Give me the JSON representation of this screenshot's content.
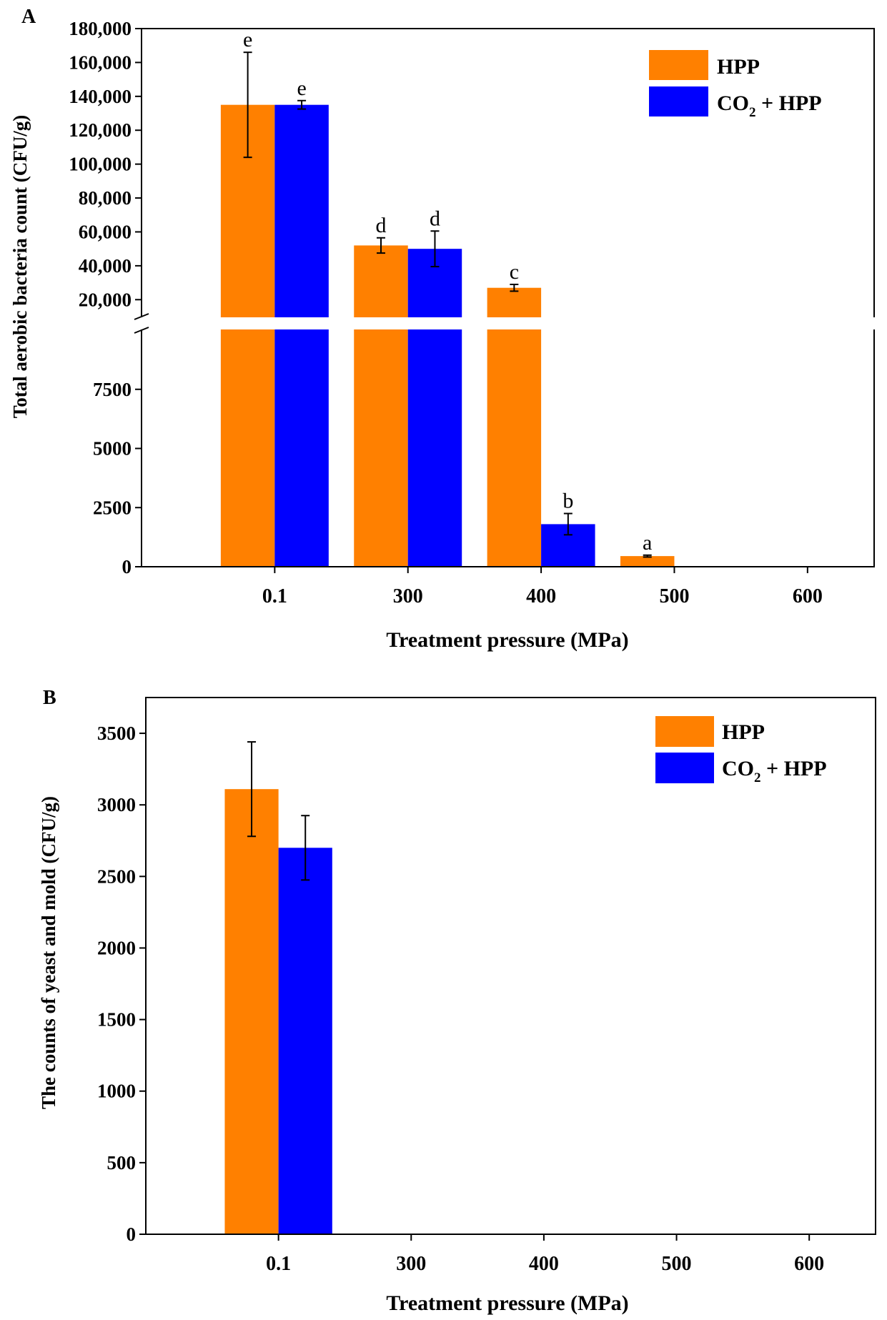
{
  "colors": {
    "hpp": "#FF8000",
    "co2": "#0000FF",
    "axis": "#000000"
  },
  "chart_data": [
    {
      "panel": "A",
      "type": "bar",
      "ylabel": "Total aerobic bacteria count (CFU/g)",
      "xlabel": "Treatment pressure (MPa)",
      "categories": [
        "0.1",
        "300",
        "400",
        "500",
        "600"
      ],
      "legend": [
        {
          "series": "hpp",
          "label": "HPP"
        },
        {
          "series": "co2",
          "label_pre": "CO",
          "label_sub": "2",
          "label_post": " + HPP"
        }
      ],
      "series": [
        {
          "key": "hpp",
          "name": "HPP",
          "values": [
            135000,
            52000,
            27000,
            450,
            0
          ],
          "errors": [
            31000,
            4500,
            2000,
            40,
            0
          ],
          "letters": [
            "e",
            "d",
            "c",
            "a",
            ""
          ]
        },
        {
          "key": "co2",
          "name": "CO2 + HPP",
          "values": [
            135000,
            50000,
            1800,
            0,
            0
          ],
          "errors": [
            2500,
            10500,
            450,
            0,
            0
          ],
          "letters": [
            "e",
            "d",
            "b",
            "",
            ""
          ]
        }
      ],
      "broken_axis": {
        "lower": {
          "range": [
            0,
            10000
          ],
          "ticks": [
            0,
            2500,
            5000,
            7500
          ],
          "tick_labels": [
            "0",
            "2500",
            "5000",
            "7500"
          ]
        },
        "upper": {
          "range": [
            10000,
            180000
          ],
          "ticks": [
            20000,
            40000,
            60000,
            80000,
            100000,
            120000,
            140000,
            160000,
            180000
          ],
          "tick_labels": [
            "20,000",
            "40,000",
            "60,000",
            "80,000",
            "100,000",
            "120,000",
            "140,000",
            "160,000",
            "180,000"
          ]
        }
      }
    },
    {
      "panel": "B",
      "type": "bar",
      "ylabel": "The counts of yeast and mold (CFU/g)",
      "xlabel": "Treatment pressure (MPa)",
      "categories": [
        "0.1",
        "300",
        "400",
        "500",
        "600"
      ],
      "legend": [
        {
          "series": "hpp",
          "label": "HPP"
        },
        {
          "series": "co2",
          "label_pre": "CO",
          "label_sub": "2",
          "label_post": " + HPP"
        }
      ],
      "series": [
        {
          "key": "hpp",
          "name": "HPP",
          "values": [
            3110,
            0,
            0,
            0,
            0
          ],
          "errors": [
            330,
            0,
            0,
            0,
            0
          ]
        },
        {
          "key": "co2",
          "name": "CO2 + HPP",
          "values": [
            2700,
            0,
            0,
            0,
            0
          ],
          "errors": [
            225,
            0,
            0,
            0,
            0
          ]
        }
      ],
      "ylim": [
        0,
        3750
      ],
      "yticks": [
        0,
        500,
        1000,
        1500,
        2000,
        2500,
        3000,
        3500
      ],
      "ytick_labels": [
        "0",
        "500",
        "1000",
        "1500",
        "2000",
        "2500",
        "3000",
        "3500"
      ]
    }
  ]
}
